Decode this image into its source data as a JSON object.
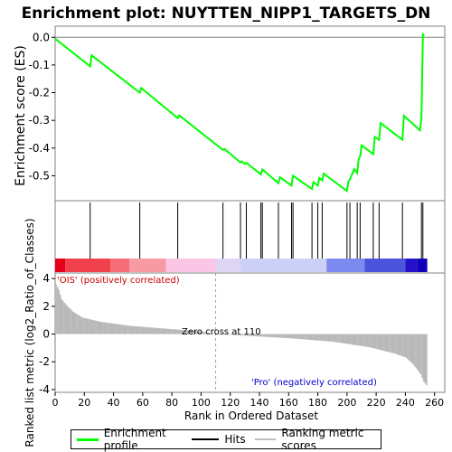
{
  "chart_data": {
    "type": "line",
    "title": "Enrichment plot: NUYTTEN_NIPP1_TARGETS_DN",
    "panels": {
      "enrichment": {
        "ylabel": "Enrichment score (ES)",
        "ylim": [
          -0.59,
          0.04
        ],
        "yticks": [
          0.0,
          -0.1,
          -0.2,
          -0.3,
          -0.4,
          -0.5
        ],
        "ytick_labels": [
          "0.0",
          "-0.1",
          "-0.2",
          "-0.3",
          "-0.4",
          "-0.5"
        ],
        "series": [
          {
            "name": "Enrichment profile",
            "color": "#00ff00",
            "x": [
              0,
              24,
              25,
              58,
              59,
              84,
              85,
              115,
              116,
              127,
              128,
              130,
              131,
              141,
              142,
              153,
              154,
              162,
              163,
              176,
              177,
              180,
              181,
              183,
              184,
              200,
              201,
              202,
              203,
              204,
              205,
              207,
              208,
              209,
              210,
              218,
              219,
              222,
              223,
              238,
              239,
              250,
              251,
              252,
              253
            ],
            "y": [
              -0.005,
              -0.105,
              -0.065,
              -0.2,
              -0.183,
              -0.292,
              -0.282,
              -0.407,
              -0.403,
              -0.452,
              -0.448,
              -0.457,
              -0.453,
              -0.495,
              -0.477,
              -0.527,
              -0.505,
              -0.535,
              -0.5,
              -0.548,
              -0.523,
              -0.535,
              -0.508,
              -0.517,
              -0.492,
              -0.555,
              -0.52,
              -0.513,
              -0.5,
              -0.488,
              -0.476,
              -0.49,
              -0.44,
              -0.43,
              -0.39,
              -0.422,
              -0.36,
              -0.37,
              -0.31,
              -0.37,
              -0.283,
              -0.336,
              -0.292,
              0.01,
              0.005
            ]
          }
        ]
      },
      "hits": {
        "name": "Hits",
        "positions": [
          24,
          58,
          84,
          115,
          127,
          131,
          141,
          142,
          153,
          162,
          163,
          176,
          180,
          183,
          200,
          202,
          207,
          209,
          218,
          222,
          238,
          251,
          252
        ]
      },
      "ranked_metric": {
        "name": "Ranking metric scores",
        "ylabel": "Ranked list metric (log2_Ratio_of_Classes)",
        "ylim": [
          -4.2,
          4.4
        ],
        "yticks": [
          4,
          2,
          0,
          -2,
          -4
        ],
        "ytick_labels": [
          "4",
          "2",
          "0",
          "-2",
          "-4"
        ],
        "zero_cross": 110,
        "zero_cross_label": "Zero cross at 110",
        "positive_label": "'OIS' (positively correlated)",
        "negative_label": "'Pro' (negatively correlated)",
        "x_knots": [
          0,
          2,
          4,
          8,
          12,
          18,
          30,
          50,
          80,
          100,
          110,
          130,
          160,
          190,
          215,
          232,
          240,
          244,
          248,
          250,
          252,
          254
        ],
        "y_knots": [
          3.6,
          3.2,
          2.5,
          2.0,
          1.6,
          1.2,
          0.9,
          0.6,
          0.35,
          0.18,
          0.0,
          -0.12,
          -0.3,
          -0.55,
          -0.95,
          -1.4,
          -1.7,
          -2.1,
          -2.6,
          -2.9,
          -3.4,
          -3.7
        ]
      }
    },
    "xlabel": "Rank in Ordered Dataset",
    "xlim": [
      0,
      267
    ],
    "xticks": [
      0,
      20,
      40,
      60,
      80,
      100,
      120,
      140,
      160,
      180,
      200,
      220,
      240,
      260
    ],
    "xtick_labels": [
      "0",
      "20",
      "40",
      "60",
      "80",
      "100",
      "120",
      "140",
      "160",
      "180",
      "200",
      "220",
      "240",
      "260"
    ],
    "gradient_bar": {
      "segments": [
        {
          "end": 7,
          "color": "#e8001a"
        },
        {
          "end": 38,
          "color": "#f0404c"
        },
        {
          "end": 51,
          "color": "#f56b76"
        },
        {
          "end": 76,
          "color": "#f89aa4"
        },
        {
          "end": 110,
          "color": "#fbc5e6"
        },
        {
          "end": 127,
          "color": "#ddd5f3"
        },
        {
          "end": 186,
          "color": "#cdd0f6"
        },
        {
          "end": 212,
          "color": "#7c89ee"
        },
        {
          "end": 240,
          "color": "#4a55dc"
        },
        {
          "end": 248,
          "color": "#2411c9"
        },
        {
          "end": 255,
          "color": "#1000b8"
        }
      ]
    },
    "legend": {
      "entries": [
        {
          "label": "Enrichment profile",
          "color": "#00ff00"
        },
        {
          "label": "Hits",
          "color": "#000000"
        },
        {
          "label": "Ranking metric scores",
          "color": "#c0c0c0"
        }
      ]
    }
  }
}
